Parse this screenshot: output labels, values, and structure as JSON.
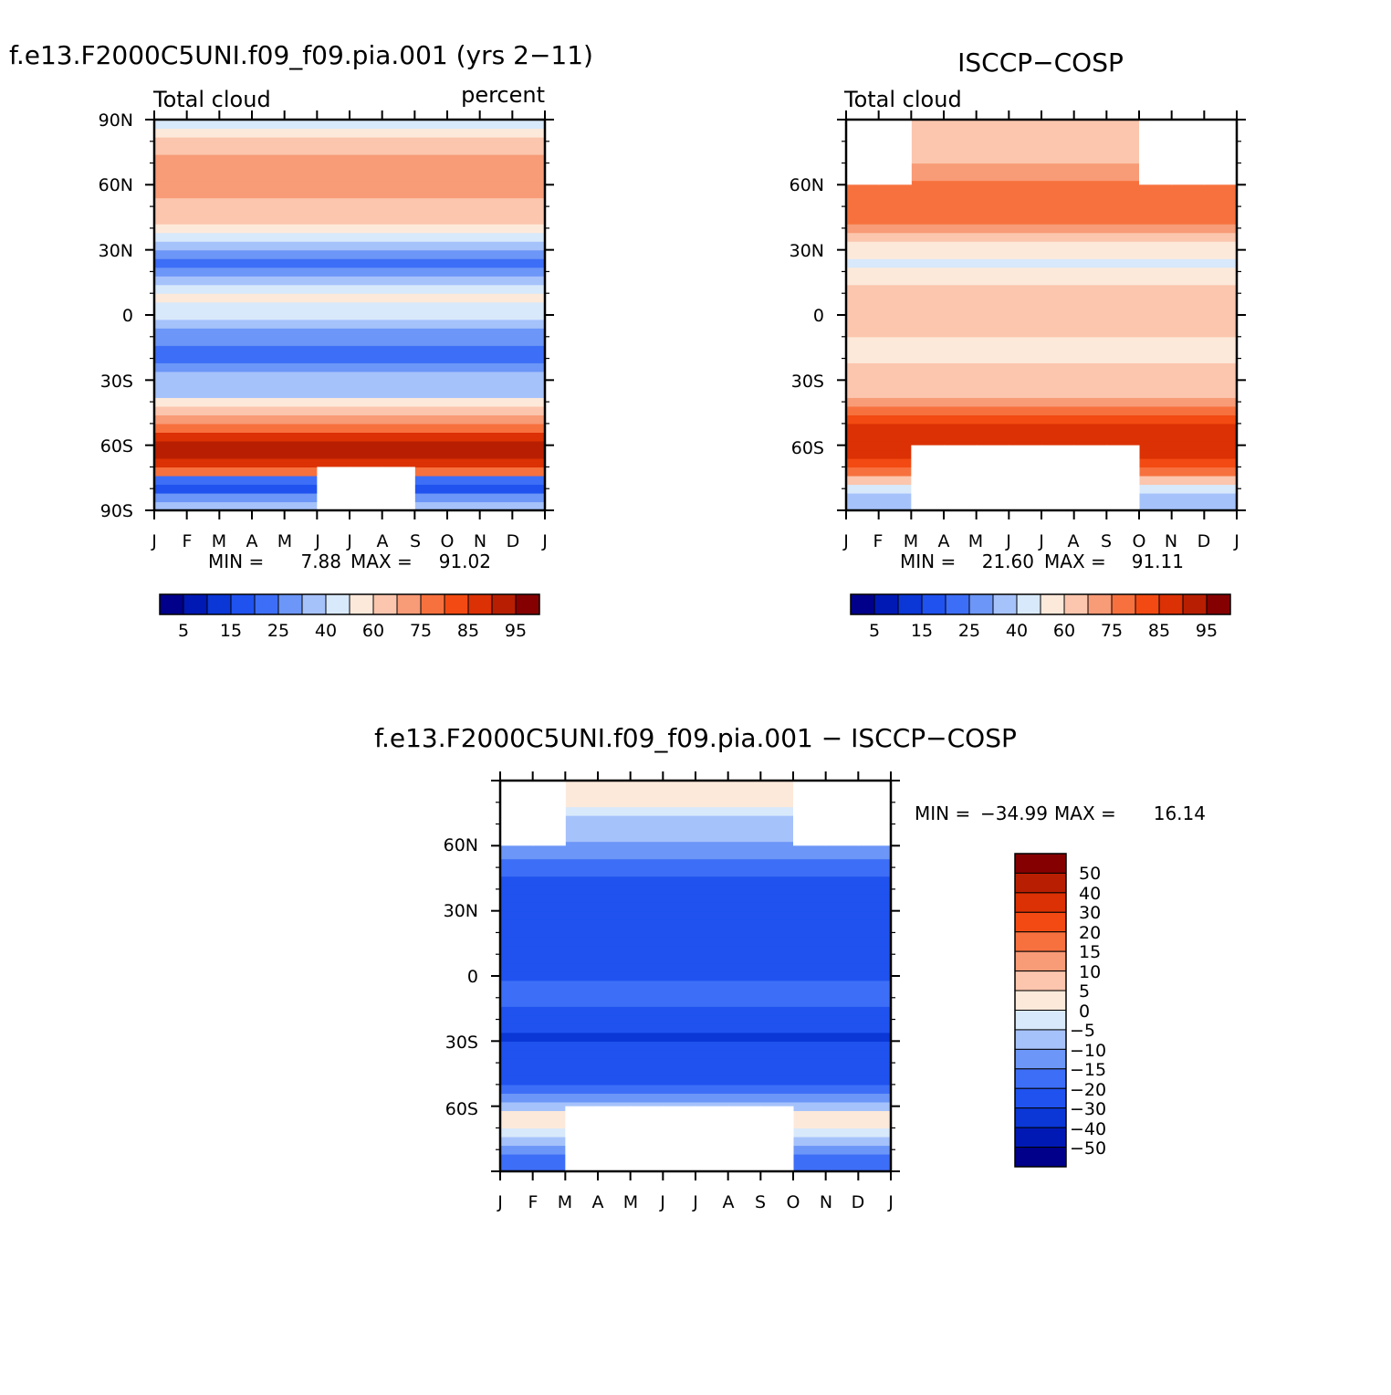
{
  "palettes": {
    "abs": [
      "#00008a",
      "#0019b4",
      "#0a37d6",
      "#1f52ee",
      "#3d6ef7",
      "#6c96f7",
      "#a6c2fb",
      "#d8e9fb",
      "#fde9da",
      "#fbc6ad",
      "#f89b77",
      "#f7713e",
      "#f24a12",
      "#db3104",
      "#b81f02",
      "#850000"
    ],
    "diff": [
      "#00008a",
      "#0019b4",
      "#0a37d6",
      "#1f52ee",
      "#3d6ef7",
      "#6c96f7",
      "#a6c2fb",
      "#d8e9fb",
      "#fde9da",
      "#fbc6ad",
      "#f89b77",
      "#f7713e",
      "#f24a12",
      "#db3104",
      "#b81f02",
      "#850000"
    ]
  },
  "chart_data": [
    {
      "id": "model",
      "type": "heatmap",
      "title": "f.e13.F2000C5UNI.f09_f09.pia.001 (yrs 2−11)",
      "left_label": "Total cloud",
      "right_label": "percent",
      "x_tick_labels": [
        "J",
        "F",
        "M",
        "A",
        "M",
        "J",
        "J",
        "A",
        "S",
        "O",
        "N",
        "D",
        "J"
      ],
      "y_tick_labels": [
        "90N",
        "60N",
        "30N",
        "0",
        "30S",
        "60S",
        "90S"
      ],
      "ylim": [
        -90,
        90
      ],
      "min_label": "MIN =",
      "min_value": "7.88",
      "max_label": "MAX =",
      "max_value": "91.02",
      "colorbar_labels": [
        "5",
        "15",
        "25",
        "40",
        "60",
        "75",
        "85",
        "95"
      ],
      "lat_profile": [
        [
          -90,
          6
        ],
        [
          -86,
          5
        ],
        [
          -82,
          3
        ],
        [
          -78,
          4
        ],
        [
          -74,
          11
        ],
        [
          -70,
          13
        ],
        [
          -66,
          14
        ],
        [
          -62,
          14
        ],
        [
          -58,
          13
        ],
        [
          -54,
          11
        ],
        [
          -50,
          10
        ],
        [
          -46,
          9
        ],
        [
          -42,
          8
        ],
        [
          -38,
          6
        ],
        [
          -34,
          6
        ],
        [
          -30,
          6
        ],
        [
          -26,
          5
        ],
        [
          -22,
          4
        ],
        [
          -18,
          4
        ],
        [
          -14,
          5
        ],
        [
          -10,
          5
        ],
        [
          -6,
          6
        ],
        [
          -2,
          7
        ],
        [
          2,
          7
        ],
        [
          6,
          8
        ],
        [
          10,
          7
        ],
        [
          14,
          6
        ],
        [
          18,
          5
        ],
        [
          22,
          4
        ],
        [
          26,
          5
        ],
        [
          30,
          6
        ],
        [
          34,
          7
        ],
        [
          38,
          8
        ],
        [
          42,
          9
        ],
        [
          46,
          9
        ],
        [
          50,
          9
        ],
        [
          54,
          10
        ],
        [
          58,
          10
        ],
        [
          62,
          10
        ],
        [
          66,
          10
        ],
        [
          70,
          10
        ],
        [
          74,
          9
        ],
        [
          78,
          9
        ],
        [
          82,
          8
        ],
        [
          86,
          7
        ],
        [
          90,
          7
        ]
      ],
      "masked": [
        {
          "lat_min": -90,
          "lat_max": -70,
          "months": [
            5,
            6,
            7
          ]
        }
      ]
    },
    {
      "id": "obs",
      "type": "heatmap",
      "title": "ISCCP−COSP",
      "left_label": "Total cloud",
      "x_tick_labels": [
        "J",
        "F",
        "M",
        "A",
        "M",
        "J",
        "J",
        "A",
        "S",
        "O",
        "N",
        "D",
        "J"
      ],
      "y_tick_labels": [
        "60N",
        "30N",
        "0",
        "30S",
        "60S"
      ],
      "ylim": [
        -90,
        90
      ],
      "min_label": "MIN =",
      "min_value": "21.60",
      "max_label": "MAX =",
      "max_value": "91.11",
      "colorbar_labels": [
        "5",
        "15",
        "25",
        "40",
        "60",
        "75",
        "85",
        "95"
      ],
      "lat_profile": [
        [
          -90,
          6
        ],
        [
          -86,
          6
        ],
        [
          -82,
          7
        ],
        [
          -78,
          9
        ],
        [
          -74,
          11
        ],
        [
          -70,
          12
        ],
        [
          -66,
          13
        ],
        [
          -62,
          13
        ],
        [
          -58,
          13
        ],
        [
          -54,
          13
        ],
        [
          -50,
          12
        ],
        [
          -46,
          11
        ],
        [
          -42,
          10
        ],
        [
          -38,
          9
        ],
        [
          -34,
          9
        ],
        [
          -30,
          9
        ],
        [
          -26,
          9
        ],
        [
          -22,
          8
        ],
        [
          -18,
          8
        ],
        [
          -14,
          8
        ],
        [
          -10,
          9
        ],
        [
          -6,
          9
        ],
        [
          -2,
          9
        ],
        [
          2,
          9
        ],
        [
          6,
          9
        ],
        [
          10,
          9
        ],
        [
          14,
          8
        ],
        [
          18,
          8
        ],
        [
          22,
          7
        ],
        [
          26,
          8
        ],
        [
          30,
          8
        ],
        [
          34,
          9
        ],
        [
          38,
          10
        ],
        [
          42,
          11
        ],
        [
          46,
          11
        ],
        [
          50,
          11
        ],
        [
          54,
          11
        ],
        [
          58,
          11
        ],
        [
          62,
          10
        ],
        [
          66,
          10
        ],
        [
          70,
          9
        ],
        [
          74,
          9
        ],
        [
          78,
          9
        ],
        [
          82,
          9
        ],
        [
          86,
          9
        ],
        [
          90,
          9
        ]
      ],
      "masked": [
        {
          "lat_min": -90,
          "lat_max": -60,
          "months": [
            2,
            3,
            4,
            5,
            6,
            7,
            8
          ]
        },
        {
          "lat_min": 60,
          "lat_max": 90,
          "months": [
            0,
            1,
            9,
            10,
            11
          ]
        }
      ]
    },
    {
      "id": "diff",
      "type": "heatmap",
      "title": "f.e13.F2000C5UNI.f09_f09.pia.001 − ISCCP−COSP",
      "x_tick_labels": [
        "J",
        "F",
        "M",
        "A",
        "M",
        "J",
        "J",
        "A",
        "S",
        "O",
        "N",
        "D",
        "J"
      ],
      "y_tick_labels": [
        "60N",
        "30N",
        "0",
        "30S",
        "60S"
      ],
      "ylim": [
        -90,
        90
      ],
      "min_label": "MIN =",
      "min_value": "−34.99",
      "max_label": "MAX =",
      "max_value": "16.14",
      "colorbar_labels": [
        "50",
        "40",
        "30",
        "20",
        "15",
        "10",
        "5",
        "0",
        "−5",
        "−10",
        "−15",
        "−20",
        "−30",
        "−40",
        "−50"
      ],
      "lat_profile": [
        [
          -90,
          4
        ],
        [
          -86,
          4
        ],
        [
          -82,
          5
        ],
        [
          -78,
          6
        ],
        [
          -74,
          7
        ],
        [
          -70,
          8
        ],
        [
          -66,
          8
        ],
        [
          -62,
          6
        ],
        [
          -58,
          5
        ],
        [
          -54,
          4
        ],
        [
          -50,
          3
        ],
        [
          -46,
          3
        ],
        [
          -42,
          3
        ],
        [
          -38,
          3
        ],
        [
          -34,
          3
        ],
        [
          -30,
          2
        ],
        [
          -26,
          3
        ],
        [
          -22,
          3
        ],
        [
          -18,
          3
        ],
        [
          -14,
          4
        ],
        [
          -10,
          4
        ],
        [
          -6,
          4
        ],
        [
          -2,
          3
        ],
        [
          2,
          3
        ],
        [
          6,
          3
        ],
        [
          10,
          3
        ],
        [
          14,
          3
        ],
        [
          18,
          3
        ],
        [
          22,
          3
        ],
        [
          26,
          3
        ],
        [
          30,
          3
        ],
        [
          34,
          3
        ],
        [
          38,
          3
        ],
        [
          42,
          3
        ],
        [
          46,
          4
        ],
        [
          50,
          4
        ],
        [
          54,
          5
        ],
        [
          58,
          5
        ],
        [
          62,
          6
        ],
        [
          66,
          6
        ],
        [
          70,
          6
        ],
        [
          74,
          7
        ],
        [
          78,
          8
        ],
        [
          82,
          8
        ],
        [
          86,
          8
        ],
        [
          90,
          8
        ]
      ],
      "masked": [
        {
          "lat_min": -90,
          "lat_max": -60,
          "months": [
            2,
            3,
            4,
            5,
            6,
            7,
            8
          ]
        },
        {
          "lat_min": 60,
          "lat_max": 90,
          "months": [
            0,
            1,
            9,
            10,
            11
          ]
        }
      ]
    }
  ]
}
